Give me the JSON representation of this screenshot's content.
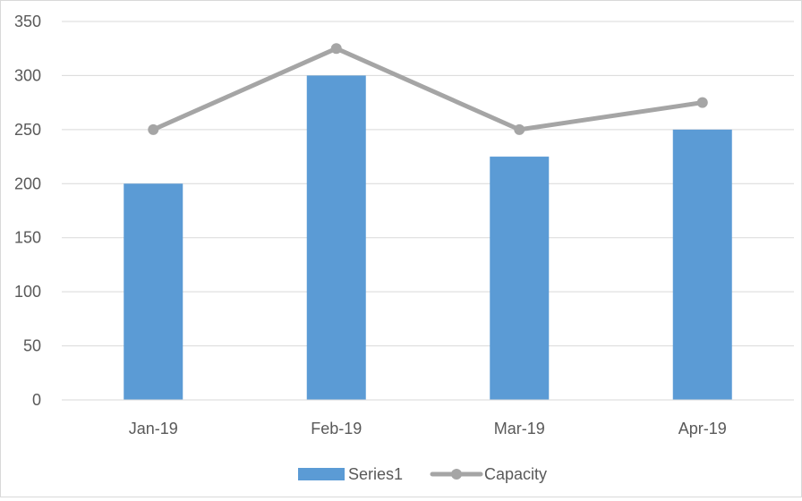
{
  "chart_data": {
    "type": "bar",
    "categories": [
      "Jan-19",
      "Feb-19",
      "Mar-19",
      "Apr-19"
    ],
    "series": [
      {
        "name": "Series1",
        "type": "bar",
        "color": "#5b9bd5",
        "values": [
          200,
          300,
          225,
          250
        ]
      },
      {
        "name": "Capacity",
        "type": "line",
        "color": "#a5a5a5",
        "marker": "circle",
        "values": [
          250,
          325,
          250,
          275
        ]
      }
    ],
    "title": "",
    "xlabel": "",
    "ylabel": "",
    "ylim": [
      0,
      350
    ],
    "yticks": [
      0,
      50,
      100,
      150,
      200,
      250,
      300,
      350
    ],
    "ytick_labels": [
      "0",
      "50",
      "100",
      "150",
      "200",
      "250",
      "300",
      "350"
    ],
    "grid": true,
    "grid_color": "#d9d9d9",
    "legend": {
      "position": "bottom",
      "entries": [
        "Series1",
        "Capacity"
      ]
    }
  }
}
